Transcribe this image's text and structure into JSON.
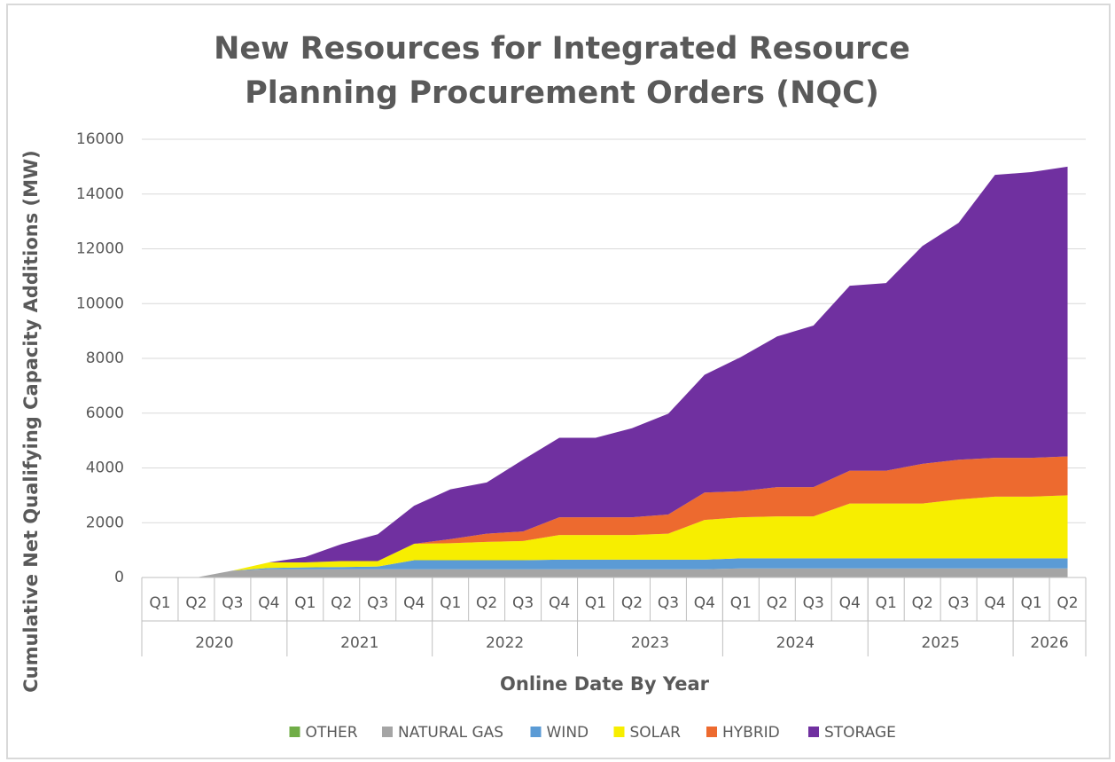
{
  "chart_data": {
    "type": "stacked_area",
    "title": [
      "New Resources for Integrated Resource",
      "Planning Procurement Orders (NQC)"
    ],
    "ylabel": "Cumulative Net Qualifying Capacity Additions (MW)",
    "xlabel": "Online Date By Year",
    "categories": [
      "Q1",
      "Q2",
      "Q3",
      "Q4",
      "Q1",
      "Q2",
      "Q3",
      "Q4",
      "Q1",
      "Q2",
      "Q3",
      "Q4",
      "Q1",
      "Q2",
      "Q3",
      "Q4",
      "Q1",
      "Q2",
      "Q3",
      "Q4",
      "Q1",
      "Q2",
      "Q3",
      "Q4",
      "Q1",
      "Q2"
    ],
    "groups": [
      {
        "label": "2020",
        "span": 4
      },
      {
        "label": "2021",
        "span": 4
      },
      {
        "label": "2022",
        "span": 4
      },
      {
        "label": "2023",
        "span": 4
      },
      {
        "label": "2024",
        "span": 4
      },
      {
        "label": "2025",
        "span": 4
      },
      {
        "label": "2026",
        "span": 2
      }
    ],
    "ylim": [
      0,
      16000
    ],
    "yticks": [
      0,
      2000,
      4000,
      6000,
      8000,
      10000,
      12000,
      14000,
      16000
    ],
    "grid": true,
    "legend": "bottom",
    "series": [
      {
        "name": "OTHER",
        "color": "#70ad47",
        "values": [
          0,
          0,
          0,
          0,
          0,
          0,
          0,
          0,
          0,
          0,
          0,
          0,
          0,
          0,
          0,
          0,
          0,
          0,
          0,
          0,
          0,
          0,
          0,
          0,
          0,
          0
        ]
      },
      {
        "name": "NATURAL GAS",
        "color": "#a5a5a5",
        "values": [
          0,
          0,
          250,
          300,
          300,
          300,
          300,
          300,
          300,
          300,
          300,
          300,
          300,
          300,
          300,
          300,
          330,
          330,
          330,
          330,
          330,
          330,
          330,
          330,
          330,
          330
        ]
      },
      {
        "name": "WIND",
        "color": "#5b9bd5",
        "values": [
          0,
          0,
          0,
          50,
          70,
          80,
          100,
          330,
          330,
          330,
          330,
          350,
          350,
          350,
          350,
          350,
          370,
          370,
          370,
          370,
          370,
          370,
          370,
          370,
          370,
          370
        ]
      },
      {
        "name": "SOLAR",
        "color": "#f7ee00",
        "values": [
          0,
          0,
          0,
          200,
          180,
          220,
          200,
          600,
          620,
          670,
          700,
          900,
          900,
          900,
          950,
          1450,
          1500,
          1530,
          1530,
          2000,
          2000,
          2000,
          2150,
          2250,
          2250,
          2300
        ]
      },
      {
        "name": "HYBRID",
        "color": "#ed6a2f",
        "values": [
          0,
          0,
          0,
          0,
          0,
          0,
          0,
          0,
          150,
          300,
          350,
          650,
          650,
          650,
          700,
          1000,
          950,
          1070,
          1070,
          1200,
          1200,
          1450,
          1450,
          1420,
          1420,
          1420
        ]
      },
      {
        "name": "STORAGE",
        "color": "#7030a0",
        "values": [
          0,
          0,
          0,
          0,
          200,
          620,
          980,
          1390,
          1820,
          1870,
          2620,
          2900,
          2900,
          3250,
          3680,
          4300,
          4900,
          5500,
          5900,
          6750,
          6850,
          7950,
          8650,
          10330,
          10430,
          10580
        ]
      }
    ]
  }
}
